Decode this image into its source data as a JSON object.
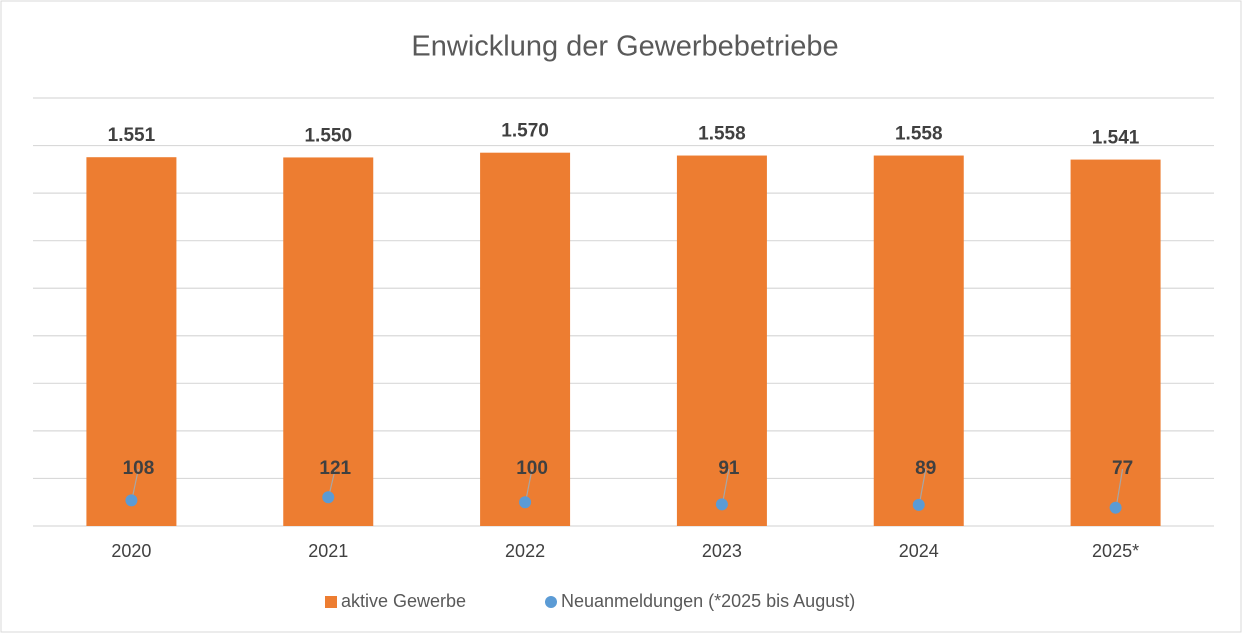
{
  "chart_data": {
    "type": "bar",
    "title": "Enwicklung der Gewerbebetriebe",
    "categories": [
      "2020",
      "2021",
      "2022",
      "2023",
      "2024",
      "2025*"
    ],
    "series": [
      {
        "name": "aktive Gewerbe",
        "type": "bar",
        "color": "#ed7d31",
        "values": [
          1551,
          1550,
          1570,
          1558,
          1558,
          1541
        ],
        "value_labels": [
          "1.551",
          "1.550",
          "1.570",
          "1.558",
          "1.558",
          "1.541"
        ]
      },
      {
        "name": "Neuanmeldungen (*2025 bis August)",
        "type": "scatter",
        "color": "#5b9bd5",
        "values": [
          108,
          121,
          100,
          91,
          89,
          77
        ]
      }
    ],
    "ylim": [
      0,
      1800
    ],
    "yticks": [
      0,
      200,
      400,
      600,
      800,
      1000,
      1200,
      1400,
      1600,
      1800
    ],
    "grid": true
  }
}
